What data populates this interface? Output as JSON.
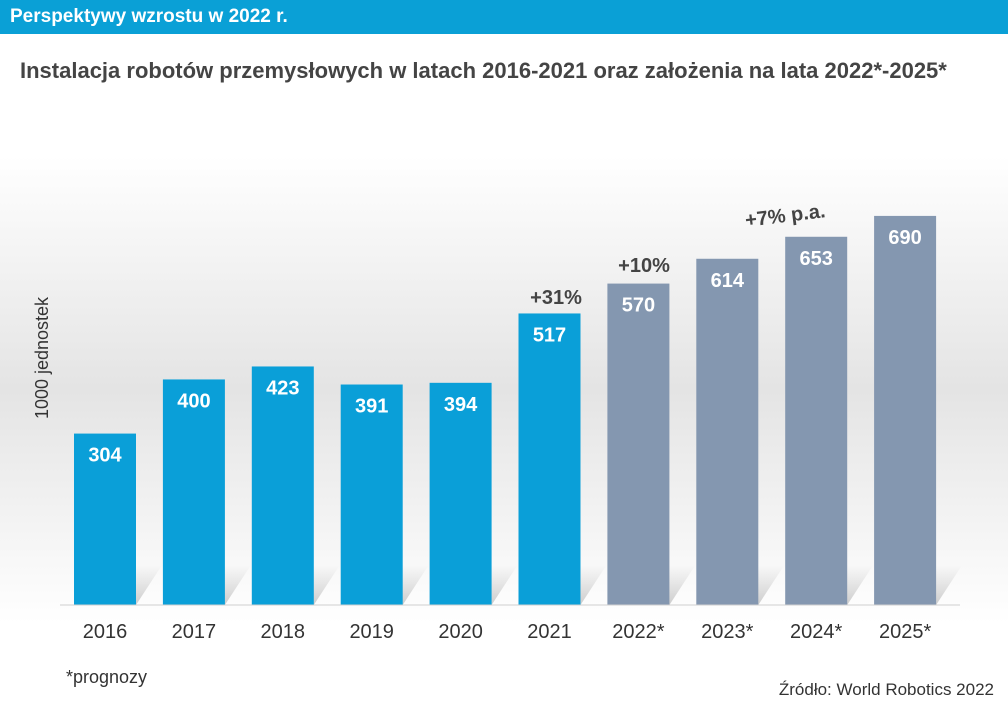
{
  "header": {
    "title": "Perspektywy wzrostu w 2022 r."
  },
  "chart_data": {
    "type": "bar",
    "title": "Instalacja robotów przemysłowych w latach 2016-2021 oraz założenia na lata 2022*-2025*",
    "ylabel": "1000 jednostek",
    "xlabel": "",
    "categories": [
      "2016",
      "2017",
      "2018",
      "2019",
      "2020",
      "2021",
      "2022*",
      "2023*",
      "2024*",
      "2025*"
    ],
    "values": [
      304,
      400,
      423,
      391,
      394,
      517,
      570,
      614,
      653,
      690
    ],
    "value_labels": [
      "304",
      "400",
      "423",
      "391",
      "394",
      "517",
      "570",
      "614",
      "653",
      "690"
    ],
    "forecast": [
      false,
      false,
      false,
      false,
      false,
      false,
      true,
      true,
      true,
      true
    ],
    "annotations": [
      {
        "text": "+31%",
        "category": "2021"
      },
      {
        "text": "+10%",
        "category": "2022*"
      },
      {
        "text": "+7% p.a.",
        "category": "2023*-2024*"
      }
    ],
    "colors": {
      "actual": "#0a9fd8",
      "forecast": "#8497b0"
    },
    "grid": false,
    "legend": "none"
  },
  "footnote": "*prognozy",
  "source": "Źródło: World Robotics 2022"
}
